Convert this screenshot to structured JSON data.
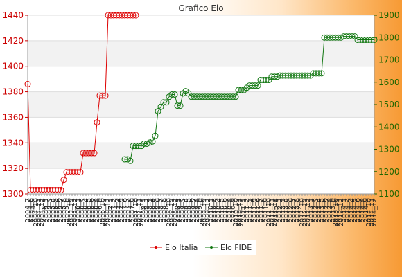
{
  "chart_data": {
    "type": "line",
    "title": "Grafico Elo",
    "xlabel": "",
    "ylabel": "",
    "colors": {
      "left_axis": "#cc0000",
      "right_axis": "#226600",
      "italia": "#dd0000",
      "fide": "#117711",
      "band": "#f2f2f2"
    },
    "grid": true,
    "legend_position": "bottom",
    "y_left": {
      "min": 1300,
      "max": 1440,
      "ticks": [
        1300,
        1320,
        1340,
        1360,
        1380,
        1400,
        1420,
        1440
      ]
    },
    "y_right": {
      "min": 1100,
      "max": 1900,
      "ticks": [
        1100,
        1200,
        1300,
        1400,
        1500,
        1600,
        1700,
        1800,
        1900
      ]
    },
    "x_labels": [
      "2004_7",
      "2004_8",
      "2004_9",
      "2004_10",
      "2004_11",
      "2004_12",
      "2005_1",
      "2005_2",
      "2005_3",
      "2005_4",
      "2005_5",
      "2005_6",
      "2005_7",
      "2005_8",
      "2005_9",
      "2005_10",
      "2005_11",
      "2005_12",
      "2006_1",
      "2006_2",
      "2006_3",
      "2006_4",
      "2006_5",
      "2006_6",
      "2006_7",
      "2006_8",
      "2006_9",
      "2006_10",
      "2006_11",
      "2006_12",
      "2007_1",
      "2007_2",
      "2007_3",
      "2007_4",
      "2007_5",
      "2007_6",
      "2007_7",
      "2007_8",
      "2007_9",
      "2007_10",
      "2007_11",
      "2007_12",
      "2008_1",
      "2008_2",
      "2008_3",
      "2008_4",
      "2008_5",
      "2008_6",
      "2008_7",
      "2008_8",
      "2008_9",
      "2008_10",
      "2008_11",
      "2008_12",
      "2009_1",
      "2009_2",
      "2009_3",
      "2009_4",
      "2009_5",
      "2009_6",
      "2009_7",
      "2009_8",
      "2009_9",
      "2009_10",
      "2009_11",
      "2009_12",
      "2010_1",
      "2010_2",
      "2010_3",
      "2010_4",
      "2010_5",
      "2010_6",
      "2010_7",
      "2010_8",
      "2010_9",
      "2010_10",
      "2010_11",
      "2010_12",
      "2011_1",
      "2011_2",
      "2011_3",
      "2011_4",
      "2011_5",
      "2011_6",
      "2011_7",
      "2011_8",
      "2011_9",
      "2011_10",
      "2011_11",
      "2011_12",
      "2012_1",
      "2012_2",
      "2012_3",
      "2012_4",
      "2012_5",
      "2012_6",
      "2012_7",
      "2012_8",
      "2012_9",
      "2012_10",
      "2012_11",
      "2012_12",
      "2013_1",
      "2013_2",
      "2013_3",
      "2013_4",
      "2013_5",
      "2013_6",
      "2013_7",
      "2013_8",
      "2013_9",
      "2013_10",
      "2013_11",
      "2013_12",
      "2014_1",
      "2014_2",
      "2014_3",
      "2014_4",
      "2014_5",
      "2014_6",
      "2014_7",
      "2014_8",
      "2014_9",
      "2014_10",
      "2014_11",
      "2014_12"
    ],
    "series": [
      {
        "name": "Elo Italia",
        "axis": "left",
        "start_index": 0,
        "values": [
          1386,
          1303,
          1303,
          1303,
          1303,
          1303,
          1303,
          1303,
          1303,
          1303,
          1303,
          1303,
          1303,
          1311,
          1317,
          1317,
          1317,
          1317,
          1317,
          1317,
          1332,
          1332,
          1332,
          1332,
          1332,
          1356,
          1377,
          1377,
          1377,
          1440,
          1440,
          1440,
          1440,
          1440,
          1440,
          1440,
          1440,
          1440,
          1440,
          1440
        ]
      },
      {
        "name": "Elo FIDE",
        "axis": "right",
        "start_index": 35,
        "values": [
          1255,
          1255,
          1248,
          1315,
          1315,
          1315,
          1315,
          1325,
          1325,
          1330,
          1335,
          1360,
          1470,
          1490,
          1510,
          1510,
          1535,
          1545,
          1545,
          1495,
          1495,
          1550,
          1560,
          1550,
          1535,
          1535,
          1535,
          1535,
          1535,
          1535,
          1535,
          1535,
          1535,
          1535,
          1535,
          1535,
          1535,
          1535,
          1535,
          1535,
          1535,
          1565,
          1565,
          1565,
          1575,
          1585,
          1585,
          1585,
          1585,
          1610,
          1610,
          1610,
          1610,
          1625,
          1625,
          1625,
          1630,
          1630,
          1630,
          1630,
          1630,
          1630,
          1630,
          1630,
          1630,
          1630,
          1630,
          1630,
          1640,
          1640,
          1640,
          1640,
          1800,
          1800,
          1800,
          1800,
          1800,
          1800,
          1800,
          1805,
          1805,
          1805,
          1805,
          1805,
          1790,
          1790,
          1790,
          1790,
          1790,
          1790,
          1790
        ]
      }
    ]
  }
}
